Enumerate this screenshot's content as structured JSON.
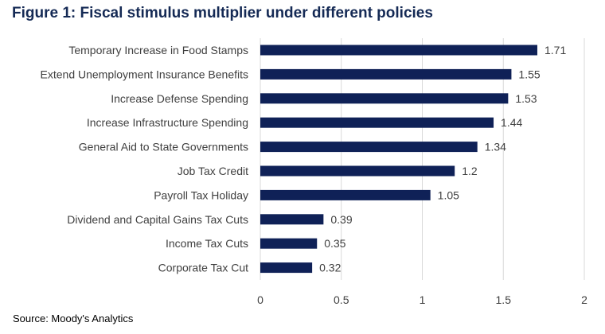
{
  "title": "Figure 1: Fiscal stimulus multiplier under different policies",
  "source": "Source: Moody's Analytics",
  "colors": {
    "bar": "#0f2157",
    "title": "#152a55",
    "grid": "#d9d9d9",
    "text": "#404040"
  },
  "chart_data": {
    "type": "bar",
    "orientation": "horizontal",
    "categories": [
      "Temporary Increase in Food Stamps",
      "Extend Unemployment Insurance Benefits",
      "Increase Defense Spending",
      "Increase Infrastructure Spending",
      "General Aid to State Governments",
      "Job Tax Credit",
      "Payroll Tax Holiday",
      "Dividend and Capital Gains Tax Cuts",
      "Income Tax Cuts",
      "Corporate Tax Cut"
    ],
    "values": [
      1.71,
      1.55,
      1.53,
      1.44,
      1.34,
      1.2,
      1.05,
      0.39,
      0.35,
      0.32
    ],
    "value_labels": [
      "1.71",
      "1.55",
      "1.53",
      "1.44",
      "1.34",
      "1.2",
      "1.05",
      "0.39",
      "0.35",
      "0.32"
    ],
    "xlim": [
      0,
      2
    ],
    "x_ticks": [
      "0",
      "0.5",
      "1",
      "1.5",
      "2"
    ],
    "grid": true,
    "legend": "none"
  }
}
